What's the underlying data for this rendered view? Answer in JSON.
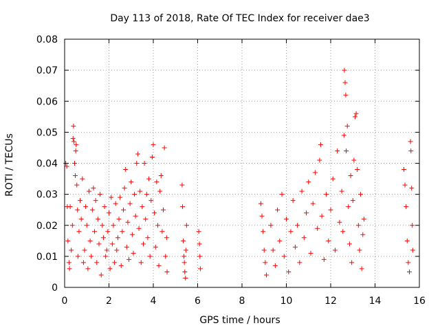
{
  "chart_data": {
    "type": "scatter",
    "title": "Day 113 of 2018, Rate Of TEC Index for receiver dae3",
    "xlabel": "GPS time / hours",
    "ylabel": "ROTI / TECUs",
    "xlim": [
      0,
      16
    ],
    "ylim": [
      0,
      0.08
    ],
    "xticks": [
      0,
      2,
      4,
      6,
      8,
      10,
      12,
      14,
      16
    ],
    "yticks": [
      0,
      0.01,
      0.02,
      0.03,
      0.04,
      0.05,
      0.06,
      0.07,
      0.08
    ],
    "xtick_labels": [
      "0",
      "2",
      "4",
      "6",
      "8",
      "10",
      "12",
      "14",
      "16"
    ],
    "ytick_labels": [
      "0",
      "0.01",
      "0.02",
      "0.03",
      "0.04",
      "0.05",
      "0.06",
      "0.07",
      "0.08"
    ],
    "grid": true,
    "marker": "+",
    "color": "#ff0000",
    "series": [
      {
        "name": "ROTI",
        "points": [
          [
            0.05,
            0.04
          ],
          [
            0.1,
            0.039
          ],
          [
            0.12,
            0.026
          ],
          [
            0.15,
            0.015
          ],
          [
            0.2,
            0.008
          ],
          [
            0.22,
            0.006
          ],
          [
            0.25,
            0.026
          ],
          [
            0.3,
            0.012
          ],
          [
            0.35,
            0.02
          ],
          [
            0.38,
            0.048
          ],
          [
            0.4,
            0.052
          ],
          [
            0.42,
            0.047
          ],
          [
            0.45,
            0.04
          ],
          [
            0.48,
            0.036
          ],
          [
            0.5,
            0.044
          ],
          [
            0.52,
            0.046
          ],
          [
            0.55,
            0.033
          ],
          [
            0.58,
            0.025
          ],
          [
            0.6,
            0.01
          ],
          [
            0.65,
            0.018
          ],
          [
            0.7,
            0.028
          ],
          [
            0.75,
            0.022
          ],
          [
            0.8,
            0.035
          ],
          [
            0.85,
            0.008
          ],
          [
            0.9,
            0.012
          ],
          [
            0.95,
            0.026
          ],
          [
            1.0,
            0.02
          ],
          [
            1.05,
            0.006
          ],
          [
            1.1,
            0.031
          ],
          [
            1.15,
            0.015
          ],
          [
            1.2,
            0.01
          ],
          [
            1.25,
            0.025
          ],
          [
            1.3,
            0.032
          ],
          [
            1.35,
            0.018
          ],
          [
            1.4,
            0.028
          ],
          [
            1.45,
            0.008
          ],
          [
            1.5,
            0.022
          ],
          [
            1.55,
            0.014
          ],
          [
            1.6,
            0.03
          ],
          [
            1.65,
            0.004
          ],
          [
            1.7,
            0.02
          ],
          [
            1.75,
            0.016
          ],
          [
            1.8,
            0.026
          ],
          [
            1.85,
            0.01
          ],
          [
            1.9,
            0.012
          ],
          [
            1.95,
            0.018
          ],
          [
            2.0,
            0.024
          ],
          [
            2.05,
            0.006
          ],
          [
            2.1,
            0.029
          ],
          [
            2.15,
            0.014
          ],
          [
            2.2,
            0.02
          ],
          [
            2.25,
            0.008
          ],
          [
            2.3,
            0.027
          ],
          [
            2.35,
            0.012
          ],
          [
            2.4,
            0.016
          ],
          [
            2.45,
            0.022
          ],
          [
            2.5,
            0.029
          ],
          [
            2.55,
            0.007
          ],
          [
            2.6,
            0.018
          ],
          [
            2.65,
            0.025
          ],
          [
            2.7,
            0.032
          ],
          [
            2.75,
            0.038
          ],
          [
            2.8,
            0.013
          ],
          [
            2.85,
            0.021
          ],
          [
            2.9,
            0.009
          ],
          [
            2.95,
            0.027
          ],
          [
            3.0,
            0.034
          ],
          [
            3.05,
            0.017
          ],
          [
            3.1,
            0.011
          ],
          [
            3.15,
            0.03
          ],
          [
            3.2,
            0.023
          ],
          [
            3.25,
            0.04
          ],
          [
            3.3,
            0.043
          ],
          [
            3.35,
            0.019
          ],
          [
            3.4,
            0.031
          ],
          [
            3.45,
            0.008
          ],
          [
            3.5,
            0.026
          ],
          [
            3.55,
            0.014
          ],
          [
            3.6,
            0.04
          ],
          [
            3.65,
            0.022
          ],
          [
            3.7,
            0.03
          ],
          [
            3.75,
            0.016
          ],
          [
            3.8,
            0.035
          ],
          [
            3.85,
            0.01
          ],
          [
            3.9,
            0.028
          ],
          [
            3.95,
            0.042
          ],
          [
            4.0,
            0.046
          ],
          [
            4.05,
            0.024
          ],
          [
            4.1,
            0.013
          ],
          [
            4.15,
            0.034
          ],
          [
            4.2,
            0.02
          ],
          [
            4.25,
            0.007
          ],
          [
            4.3,
            0.031
          ],
          [
            4.35,
            0.036
          ],
          [
            4.4,
            0.018
          ],
          [
            4.45,
            0.025
          ],
          [
            4.5,
            0.045
          ],
          [
            4.55,
            0.01
          ],
          [
            4.6,
            0.016
          ],
          [
            4.62,
            0.005
          ],
          [
            5.3,
            0.033
          ],
          [
            5.32,
            0.026
          ],
          [
            5.35,
            0.015
          ],
          [
            5.38,
            0.01
          ],
          [
            5.4,
            0.008
          ],
          [
            5.42,
            0.005
          ],
          [
            5.45,
            0.003
          ],
          [
            5.47,
            0.012
          ],
          [
            5.5,
            0.02
          ],
          [
            6.05,
            0.018
          ],
          [
            6.08,
            0.014
          ],
          [
            6.1,
            0.01
          ],
          [
            6.12,
            0.006
          ],
          [
            8.85,
            0.027
          ],
          [
            8.9,
            0.023
          ],
          [
            8.95,
            0.018
          ],
          [
            9.0,
            0.012
          ],
          [
            9.05,
            0.008
          ],
          [
            9.1,
            0.004
          ],
          [
            9.3,
            0.02
          ],
          [
            9.4,
            0.012
          ],
          [
            9.5,
            0.007
          ],
          [
            9.6,
            0.025
          ],
          [
            9.7,
            0.015
          ],
          [
            9.8,
            0.03
          ],
          [
            9.9,
            0.01
          ],
          [
            10.0,
            0.022
          ],
          [
            10.1,
            0.005
          ],
          [
            10.2,
            0.018
          ],
          [
            10.3,
            0.028
          ],
          [
            10.4,
            0.013
          ],
          [
            10.5,
            0.02
          ],
          [
            10.6,
            0.008
          ],
          [
            10.7,
            0.031
          ],
          [
            10.8,
            0.016
          ],
          [
            10.9,
            0.024
          ],
          [
            11.0,
            0.034
          ],
          [
            11.1,
            0.011
          ],
          [
            11.2,
            0.027
          ],
          [
            11.3,
            0.037
          ],
          [
            11.4,
            0.019
          ],
          [
            11.5,
            0.041
          ],
          [
            11.55,
            0.046
          ],
          [
            11.6,
            0.023
          ],
          [
            11.7,
            0.009
          ],
          [
            11.8,
            0.03
          ],
          [
            11.9,
            0.015
          ],
          [
            12.0,
            0.025
          ],
          [
            12.1,
            0.035
          ],
          [
            12.2,
            0.012
          ],
          [
            12.3,
            0.044
          ],
          [
            12.4,
            0.021
          ],
          [
            12.5,
            0.031
          ],
          [
            12.55,
            0.018
          ],
          [
            12.6,
            0.049
          ],
          [
            12.62,
            0.07
          ],
          [
            12.65,
            0.066
          ],
          [
            12.68,
            0.062
          ],
          [
            12.7,
            0.044
          ],
          [
            12.75,
            0.052
          ],
          [
            12.8,
            0.026
          ],
          [
            12.85,
            0.014
          ],
          [
            12.9,
            0.036
          ],
          [
            12.95,
            0.008
          ],
          [
            13.0,
            0.028
          ],
          [
            13.05,
            0.041
          ],
          [
            13.1,
            0.055
          ],
          [
            13.15,
            0.056
          ],
          [
            13.2,
            0.038
          ],
          [
            13.25,
            0.02
          ],
          [
            13.3,
            0.012
          ],
          [
            13.35,
            0.03
          ],
          [
            13.4,
            0.006
          ],
          [
            13.45,
            0.017
          ],
          [
            13.5,
            0.022
          ],
          [
            15.3,
            0.038
          ],
          [
            15.35,
            0.033
          ],
          [
            15.4,
            0.026
          ],
          [
            15.45,
            0.015
          ],
          [
            15.5,
            0.008
          ],
          [
            15.55,
            0.005
          ],
          [
            15.6,
            0.047
          ],
          [
            15.62,
            0.044
          ],
          [
            15.65,
            0.032
          ],
          [
            15.68,
            0.02
          ],
          [
            15.7,
            0.012
          ]
        ]
      }
    ]
  }
}
